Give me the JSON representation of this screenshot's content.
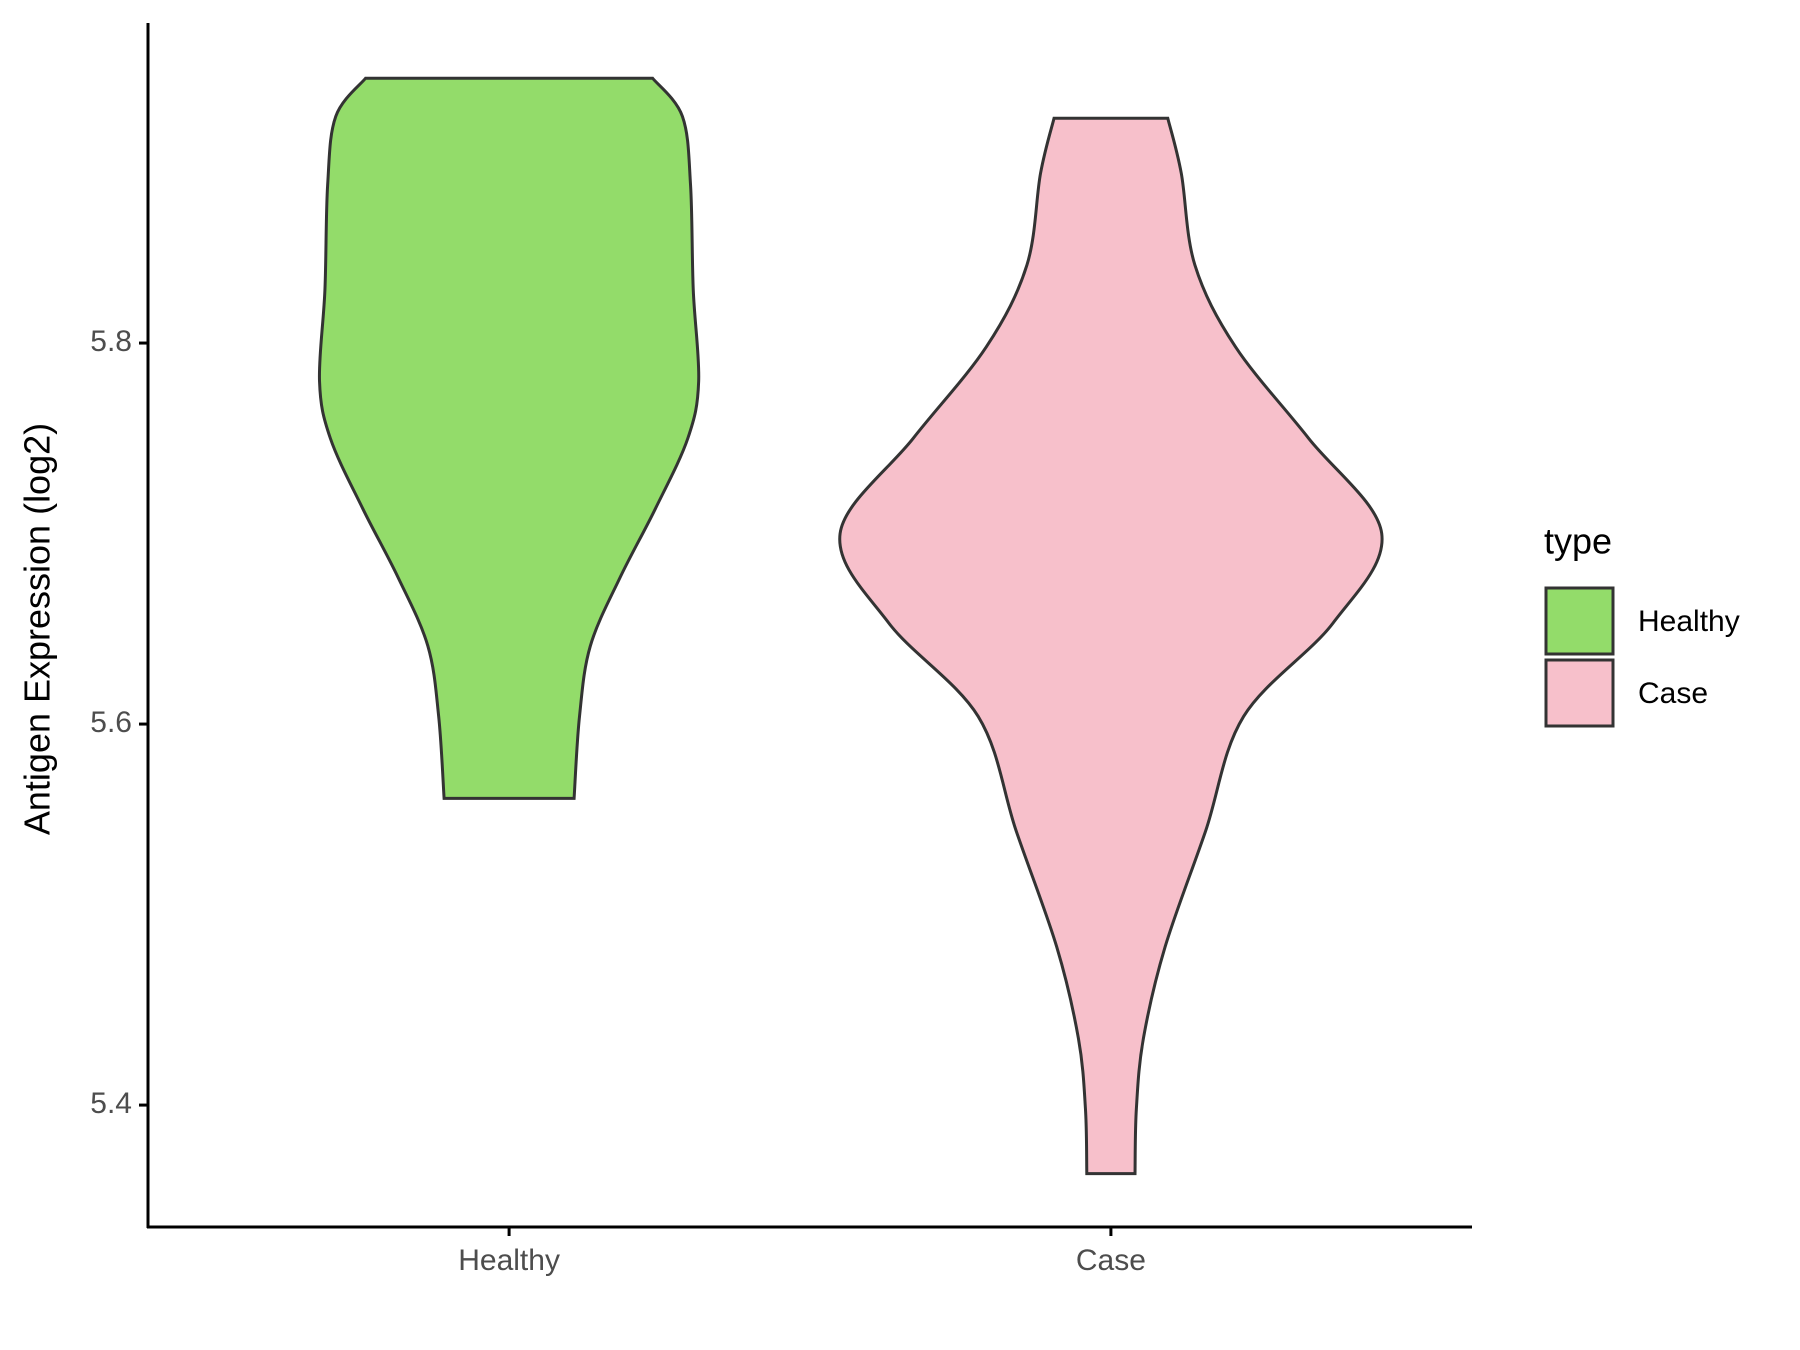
{
  "chart_data": {
    "type": "violin",
    "y_label": "Antigen Expression (log2)",
    "categories": [
      "Healthy",
      "Case"
    ],
    "ylim": [
      5.336,
      5.968
    ],
    "yticks": [
      5.4,
      5.6,
      5.8
    ],
    "legend_title": "type",
    "legend_position": "right",
    "series": [
      {
        "name": "Healthy",
        "color": "#93dc6a",
        "y": [
          5.939,
          5.919,
          5.883,
          5.828,
          5.78,
          5.75,
          5.713,
          5.677,
          5.641,
          5.604,
          5.561
        ],
        "width": [
          0.53,
          0.64,
          0.67,
          0.68,
          0.7,
          0.66,
          0.54,
          0.41,
          0.3,
          0.26,
          0.24
        ]
      },
      {
        "name": "Case",
        "color": "#f7c0cb",
        "y": [
          5.918,
          5.889,
          5.841,
          5.798,
          5.75,
          5.7,
          5.653,
          5.604,
          5.544,
          5.483,
          5.435,
          5.398,
          5.364
        ],
        "width": [
          0.21,
          0.26,
          0.31,
          0.46,
          0.73,
          1,
          0.82,
          0.49,
          0.35,
          0.2,
          0.12,
          0.094,
          0.089
        ]
      }
    ]
  }
}
